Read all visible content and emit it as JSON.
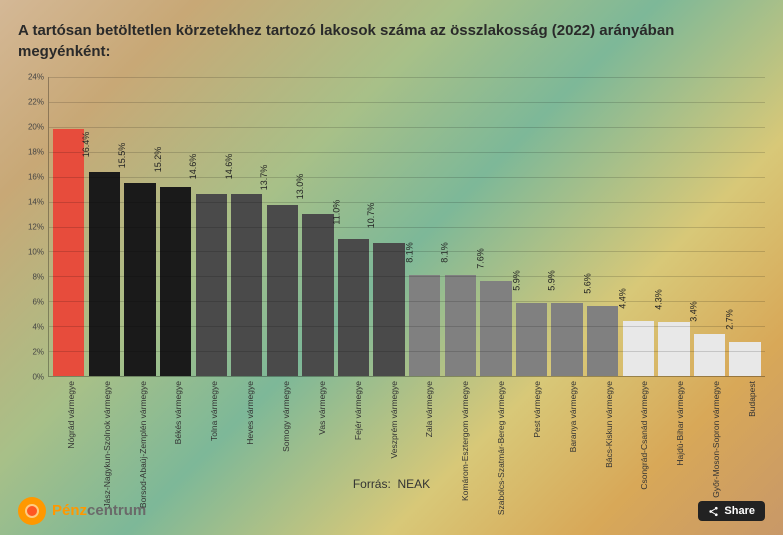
{
  "title": "A tartósan betöltetlen körzetekhez tartozó lakosok száma az összlakosság (2022) arányában megyénként:",
  "chart": {
    "type": "bar",
    "y_axis": {
      "min": 0,
      "max": 24,
      "step": 2,
      "suffix": "%",
      "label_fontsize": 8
    },
    "first_bar_color": "#e74c3c",
    "group_colors": [
      "#1a1a1a",
      "#4a4a4a",
      "#808080",
      "#e8e8e8"
    ],
    "background_gradient": [
      "#d4b896",
      "#a8c088",
      "#7db898",
      "#d8c878",
      "#c89868"
    ],
    "grid_color": "rgba(0,0,0,0.15)",
    "bar_width_ratio": 0.88,
    "data": [
      {
        "label": "Nógrád vármegye",
        "value": 19.8,
        "color": "#e74c3c",
        "show_value": false
      },
      {
        "label": "Jász-Nagykun-Szolnok vármegye",
        "value": 16.4,
        "color": "#1a1a1a",
        "show_value": true
      },
      {
        "label": "Borsod-Abaúj-Zemplén vármegye",
        "value": 15.5,
        "color": "#1a1a1a",
        "show_value": true
      },
      {
        "label": "Békés vármegye",
        "value": 15.2,
        "color": "#1a1a1a",
        "show_value": true
      },
      {
        "label": "Tolna vármegye",
        "value": 14.6,
        "color": "#4a4a4a",
        "show_value": true
      },
      {
        "label": "Heves vármegye",
        "value": 14.6,
        "color": "#4a4a4a",
        "show_value": true
      },
      {
        "label": "Somogy vármegye",
        "value": 13.7,
        "color": "#4a4a4a",
        "show_value": true
      },
      {
        "label": "Vas vármegye",
        "value": 13.0,
        "color": "#4a4a4a",
        "show_value": true
      },
      {
        "label": "Fejér vármegye",
        "value": 11.0,
        "color": "#4a4a4a",
        "show_value": true
      },
      {
        "label": "Veszprém vármegye",
        "value": 10.7,
        "color": "#4a4a4a",
        "show_value": true
      },
      {
        "label": "Zala vármegye",
        "value": 8.1,
        "color": "#808080",
        "show_value": true
      },
      {
        "label": "Komárom-Esztergom vármegye",
        "value": 8.1,
        "color": "#808080",
        "show_value": true
      },
      {
        "label": "Szabolcs-Szatmár-Bereg vármegye",
        "value": 7.6,
        "color": "#808080",
        "show_value": true
      },
      {
        "label": "Pest vármegye",
        "value": 5.9,
        "color": "#808080",
        "show_value": true
      },
      {
        "label": "Baranya vármegye",
        "value": 5.9,
        "color": "#808080",
        "show_value": true
      },
      {
        "label": "Bács-Kiskun vármegye",
        "value": 5.6,
        "color": "#808080",
        "show_value": true
      },
      {
        "label": "Csongrád-Csanád vármegye",
        "value": 4.4,
        "color": "#e8e8e8",
        "show_value": true
      },
      {
        "label": "Hajdú-Bihar vármegye",
        "value": 4.3,
        "color": "#e8e8e8",
        "show_value": true
      },
      {
        "label": "Győr-Moson-Sopron vármegye",
        "value": 3.4,
        "color": "#e8e8e8",
        "show_value": true
      },
      {
        "label": "Budapest",
        "value": 2.7,
        "color": "#e8e8e8",
        "show_value": true
      }
    ]
  },
  "source": {
    "prefix": "Forrás:",
    "name": "NEAK"
  },
  "logo": {
    "part1": "Pénz",
    "part2": "centrum"
  },
  "share_label": "Share"
}
